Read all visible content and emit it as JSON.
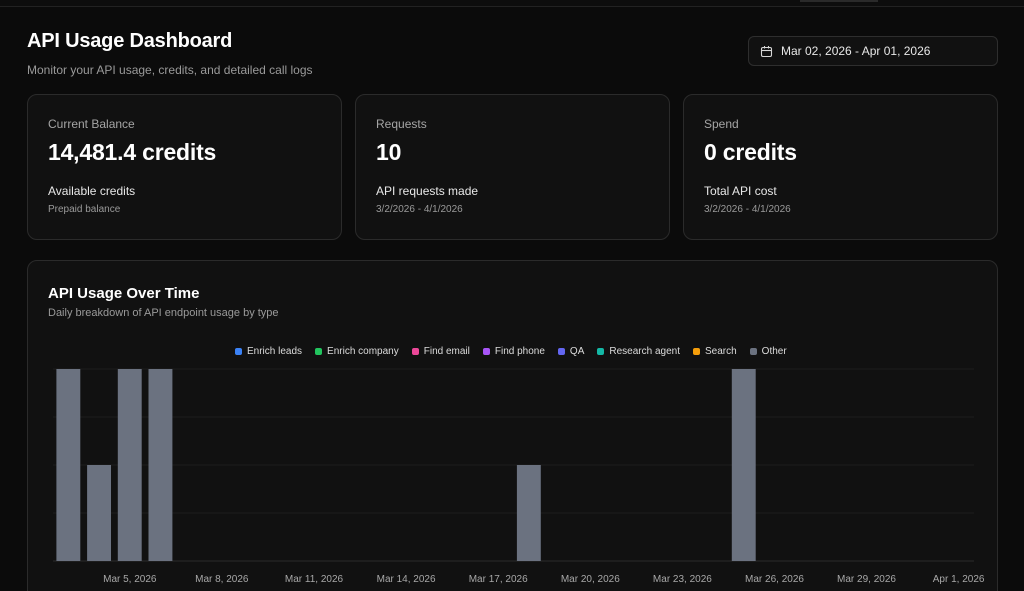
{
  "header": {
    "title": "API Usage Dashboard",
    "subtitle": "Monitor your API usage, credits, and detailed call logs"
  },
  "date_range": {
    "label": "Mar 02, 2026 - Apr 01, 2026",
    "icon": "calendar-icon"
  },
  "cards": [
    {
      "label": "Current Balance",
      "value": "14,481.4 credits",
      "sub": "Available credits",
      "note": "Prepaid balance"
    },
    {
      "label": "Requests",
      "value": "10",
      "sub": "API requests made",
      "note": "3/2/2026 - 4/1/2026"
    },
    {
      "label": "Spend",
      "value": "0 credits",
      "sub": "Total API cost",
      "note": "3/2/2026 - 4/1/2026"
    }
  ],
  "chart": {
    "title": "API Usage Over Time",
    "subtitle": "Daily breakdown of API endpoint usage by type",
    "legend": [
      {
        "label": "Enrich leads",
        "color": "#3b82f6"
      },
      {
        "label": "Enrich company",
        "color": "#22c55e"
      },
      {
        "label": "Find email",
        "color": "#ec4899"
      },
      {
        "label": "Find phone",
        "color": "#a855f7"
      },
      {
        "label": "QA",
        "color": "#6366f1"
      },
      {
        "label": "Research agent",
        "color": "#14b8a6"
      },
      {
        "label": "Search",
        "color": "#f59e0b"
      },
      {
        "label": "Other",
        "color": "#6b7280"
      }
    ]
  },
  "chart_data": {
    "type": "bar",
    "stacked": true,
    "categories": [
      "2026-03-03",
      "2026-03-04",
      "2026-03-05",
      "2026-03-06",
      "2026-03-07",
      "2026-03-08",
      "2026-03-09",
      "2026-03-10",
      "2026-03-11",
      "2026-03-12",
      "2026-03-13",
      "2026-03-14",
      "2026-03-15",
      "2026-03-16",
      "2026-03-17",
      "2026-03-18",
      "2026-03-19",
      "2026-03-20",
      "2026-03-21",
      "2026-03-22",
      "2026-03-23",
      "2026-03-24",
      "2026-03-25",
      "2026-03-26",
      "2026-03-27",
      "2026-03-28",
      "2026-03-29",
      "2026-03-30",
      "2026-03-31",
      "2026-04-01"
    ],
    "x_tick_labels": [
      "Mar 5, 2026",
      "Mar 8, 2026",
      "Mar 11, 2026",
      "Mar 14, 2026",
      "Mar 17, 2026",
      "Mar 20, 2026",
      "Mar 23, 2026",
      "Mar 26, 2026",
      "Mar 29, 2026",
      "Apr 1, 2026"
    ],
    "series": [
      {
        "name": "Other",
        "color": "#6b7280",
        "values": [
          2,
          1,
          2,
          2,
          0,
          0,
          0,
          0,
          0,
          0,
          0,
          0,
          0,
          0,
          0,
          1,
          0,
          0,
          0,
          0,
          0,
          0,
          2,
          0,
          0,
          0,
          0,
          0,
          0,
          0
        ]
      }
    ],
    "ylim": [
      0,
      2
    ],
    "grid": true,
    "legend_position": "top-center"
  }
}
